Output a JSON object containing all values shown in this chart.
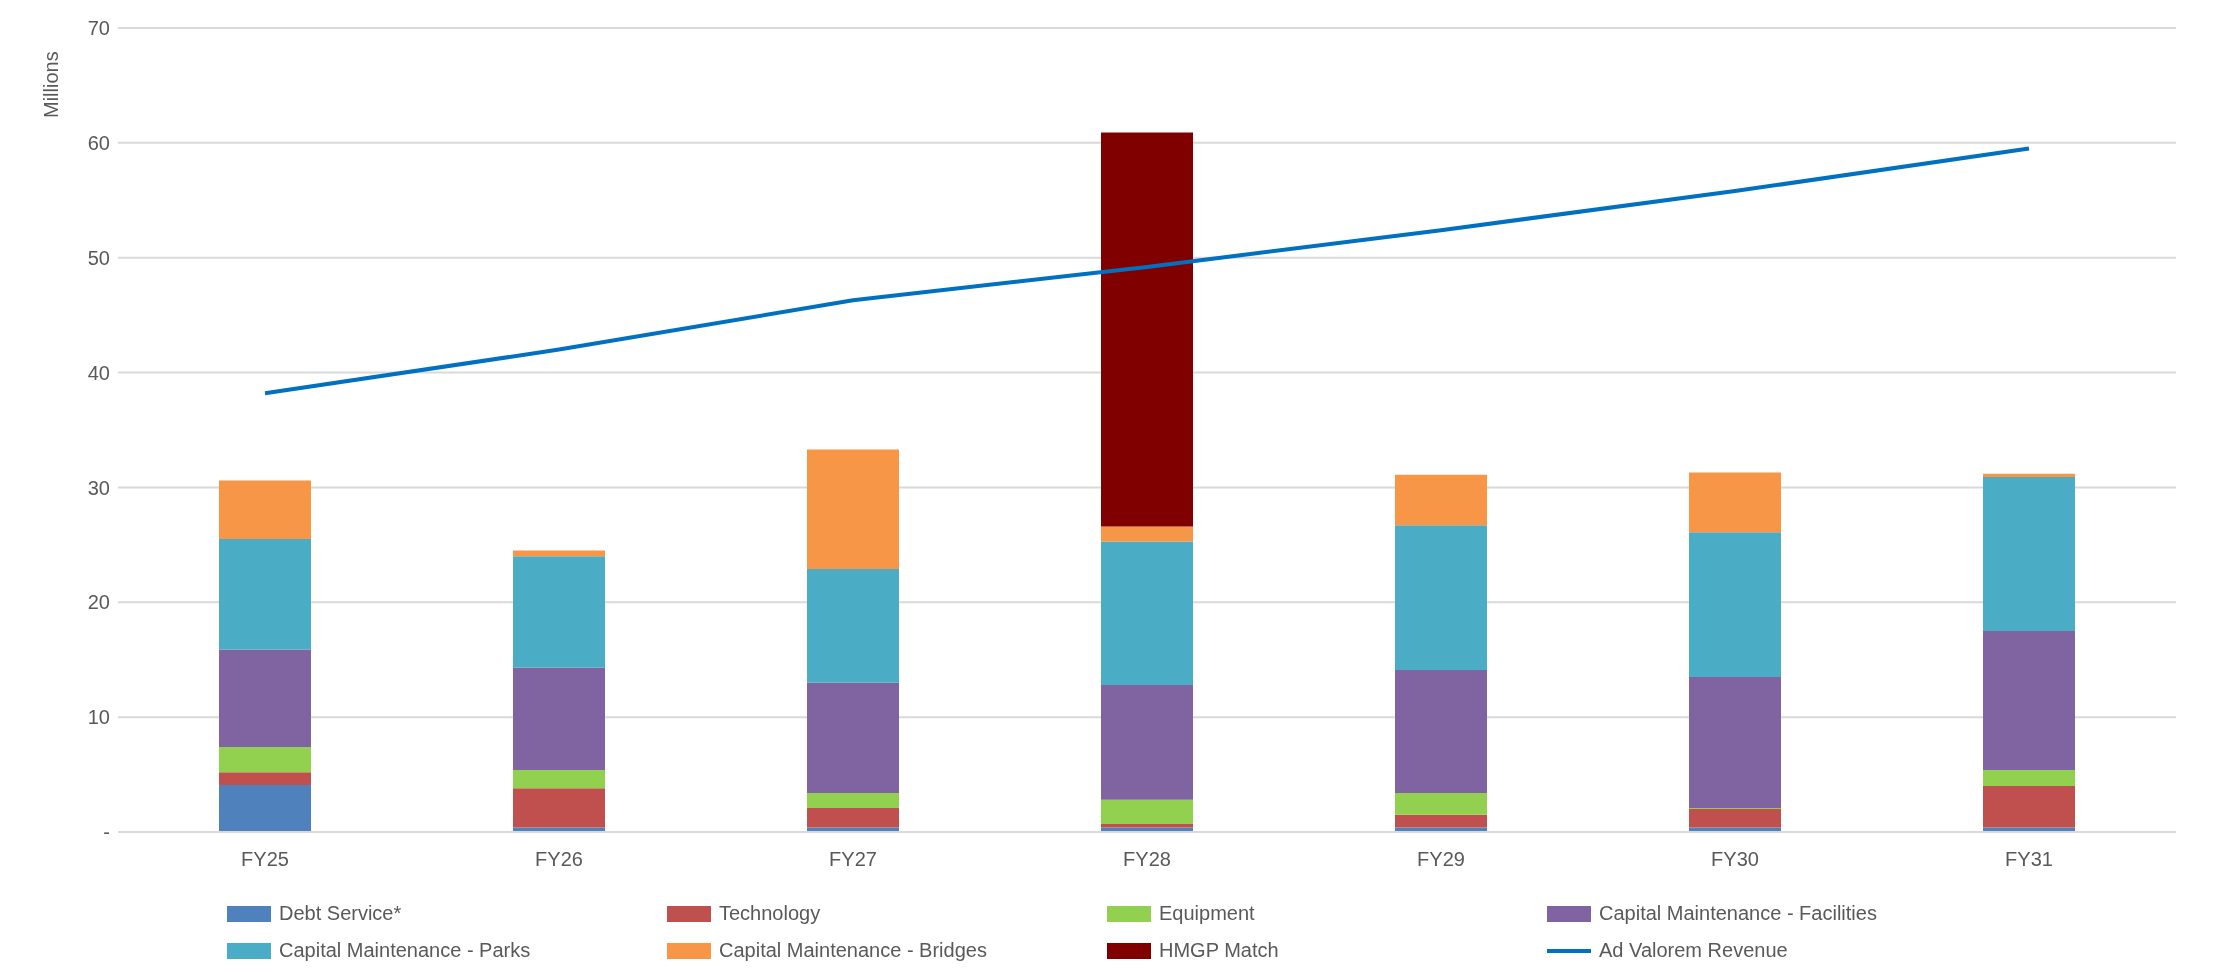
{
  "chart_data": {
    "type": "bar",
    "stacked": true,
    "ylabel": "Millions",
    "categories": [
      "FY25",
      "FY26",
      "FY27",
      "FY28",
      "FY29",
      "FY30",
      "FY31"
    ],
    "series": [
      {
        "name": "Debt Service*",
        "color": "#4f81bd",
        "values": [
          4.1,
          0.4,
          0.4,
          0.4,
          0.4,
          0.4,
          0.4
        ]
      },
      {
        "name": "Technology",
        "color": "#c0504d",
        "values": [
          1.1,
          3.4,
          1.7,
          0.3,
          1.1,
          1.6,
          3.6
        ]
      },
      {
        "name": "Equipment",
        "color": "#92d050",
        "values": [
          2.2,
          1.6,
          1.3,
          2.1,
          1.9,
          0.1,
          1.4
        ]
      },
      {
        "name": "Capital Maintenance - Facilities",
        "color": "#8064a2",
        "values": [
          8.5,
          8.9,
          9.6,
          10.0,
          10.7,
          11.4,
          12.1
        ]
      },
      {
        "name": "Capital Maintenance - Parks",
        "color": "#4bacc6",
        "values": [
          9.6,
          9.7,
          9.9,
          12.5,
          12.6,
          12.6,
          13.4
        ]
      },
      {
        "name": "Capital Maintenance - Bridges",
        "color": "#f79646",
        "values": [
          5.1,
          0.5,
          10.4,
          1.3,
          4.4,
          5.2,
          0.3
        ]
      },
      {
        "name": "HMGP Match",
        "color": "#800000",
        "values": [
          0,
          0,
          0,
          34.3,
          0,
          0,
          0
        ]
      },
      {
        "name": "Ad Valorem Revenue",
        "type": "line",
        "color": "#0070c0",
        "values": [
          38.2,
          42.0,
          46.3,
          49.2,
          52.4,
          55.8,
          59.5
        ]
      }
    ],
    "ylim": [
      0,
      70
    ],
    "yticks": [
      {
        "value": 0,
        "label": "-"
      },
      10,
      20,
      30,
      40,
      50,
      60,
      70
    ],
    "grid": "y",
    "legend": "bottom",
    "marker": "none"
  }
}
